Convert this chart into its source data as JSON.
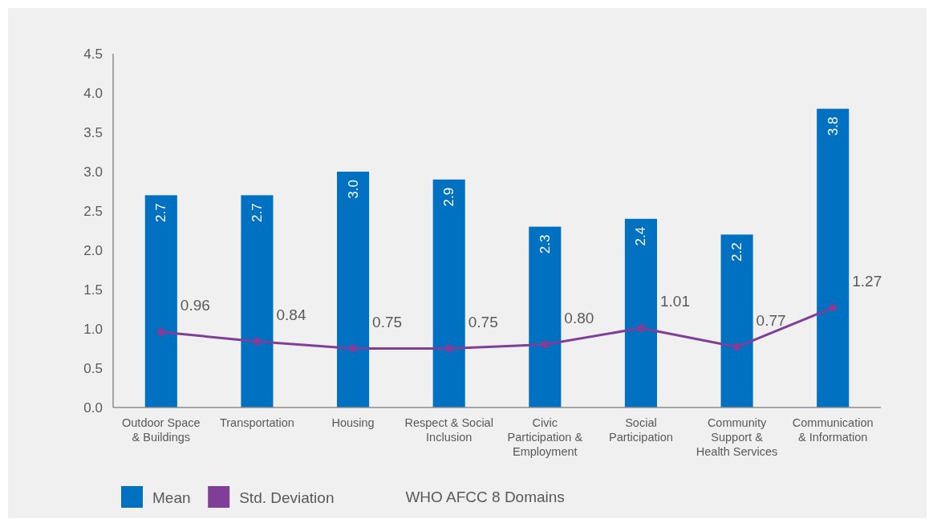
{
  "chart_data": {
    "type": "bar",
    "xlabel": "WHO AFCC 8 Domains",
    "categories": [
      "Outdoor Space\n& Buildings",
      "Transportation",
      "Housing",
      "Respect & Social\nInclusion",
      "Civic\nParticipation &\nEmployment",
      "Social\nParticipation",
      "Community\nSupport &\nHealth Services",
      "Communication\n& Information"
    ],
    "series": [
      {
        "name": "Mean",
        "color": "#0070c0",
        "values": [
          2.7,
          2.7,
          3.0,
          2.9,
          2.3,
          2.4,
          2.2,
          3.8
        ],
        "value_labels": [
          "2.7",
          "2.7",
          "3.0",
          "2.9",
          "2.3",
          "2.4",
          "2.2",
          "3.8"
        ]
      },
      {
        "name": "Std. Deviation",
        "type": "line",
        "color": "#7f3f98",
        "marker": "circle",
        "values": [
          0.96,
          0.84,
          0.75,
          0.75,
          0.8,
          1.01,
          0.77,
          1.27
        ],
        "value_labels": [
          "0.96",
          "0.84",
          "0.75",
          "0.75",
          "0.80",
          "1.01",
          "0.77",
          "1.27"
        ]
      }
    ],
    "ylim": [
      0,
      4.5
    ],
    "yticks": [
      {
        "value": 0,
        "label": "0.0"
      },
      0.5,
      {
        "value": 1,
        "label": "1.0"
      },
      1.5,
      {
        "value": 2,
        "label": "2.0"
      },
      2.5,
      {
        "value": 3,
        "label": "3.0"
      },
      3.5,
      {
        "value": 4,
        "label": "4.0"
      },
      4.5
    ],
    "legend": "bottom left"
  }
}
